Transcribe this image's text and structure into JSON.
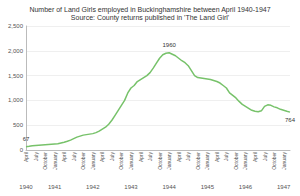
{
  "chart_data": {
    "type": "line",
    "title": "Number of Land Girls employed in Buckinghamshire between April 1940-1947",
    "subtitle": "Source: County returns published in 'The Land Girl'",
    "categories": [
      "April",
      null,
      null,
      "July",
      null,
      null,
      "October",
      null,
      null,
      "January",
      null,
      null,
      "April",
      null,
      null,
      "July",
      null,
      null,
      "October",
      null,
      null,
      "January",
      null,
      null,
      "April",
      null,
      null,
      "July",
      null,
      null,
      "October",
      null,
      null,
      "January",
      null,
      null,
      "April",
      null,
      null,
      "July",
      null,
      null,
      "October",
      null,
      null,
      "January",
      null,
      null,
      "April",
      null,
      null,
      "July",
      null,
      null,
      "October",
      null,
      null,
      "January",
      null,
      null,
      "April",
      null,
      null,
      "July",
      null,
      null,
      "October",
      null,
      null,
      "January",
      null,
      null,
      "April",
      null,
      null,
      "July",
      null,
      null,
      "October",
      null,
      null,
      "January",
      null,
      null
    ],
    "years": [
      "1940",
      null,
      null,
      null,
      null,
      null,
      null,
      null,
      null,
      "1941",
      null,
      null,
      null,
      null,
      null,
      null,
      null,
      null,
      null,
      null,
      null,
      "1942",
      null,
      null,
      null,
      null,
      null,
      null,
      null,
      null,
      null,
      null,
      null,
      "1943",
      null,
      null,
      null,
      null,
      null,
      null,
      null,
      null,
      null,
      null,
      null,
      "1944",
      null,
      null,
      null,
      null,
      null,
      null,
      null,
      null,
      null,
      null,
      null,
      "1945",
      null,
      null,
      null,
      null,
      null,
      null,
      null,
      null,
      null,
      null,
      null,
      "1946",
      null,
      null,
      null,
      null,
      null,
      null,
      null,
      null,
      null,
      null,
      null,
      "1947",
      null,
      null
    ],
    "values": [
      67,
      75,
      85,
      90,
      95,
      100,
      105,
      110,
      115,
      120,
      125,
      140,
      155,
      175,
      200,
      230,
      260,
      280,
      300,
      310,
      320,
      330,
      350,
      380,
      420,
      460,
      520,
      600,
      700,
      800,
      900,
      1000,
      1150,
      1250,
      1300,
      1380,
      1420,
      1460,
      1500,
      1560,
      1650,
      1750,
      1850,
      1920,
      1950,
      1960,
      1930,
      1900,
      1850,
      1800,
      1760,
      1700,
      1600,
      1500,
      1460,
      1450,
      1440,
      1430,
      1420,
      1400,
      1380,
      1350,
      1300,
      1250,
      1150,
      1100,
      1050,
      980,
      920,
      880,
      840,
      800,
      780,
      770,
      790,
      880,
      910,
      900,
      870,
      850,
      820,
      800,
      780,
      764
    ],
    "value_labels": [
      "67",
      null,
      null,
      null,
      null,
      null,
      null,
      null,
      null,
      null,
      null,
      null,
      null,
      null,
      null,
      null,
      null,
      null,
      null,
      null,
      null,
      null,
      null,
      null,
      null,
      null,
      null,
      null,
      null,
      null,
      null,
      null,
      null,
      null,
      null,
      null,
      null,
      null,
      null,
      null,
      null,
      null,
      null,
      null,
      null,
      "1960",
      null,
      null,
      null,
      null,
      null,
      null,
      null,
      null,
      null,
      null,
      null,
      null,
      null,
      null,
      null,
      null,
      null,
      null,
      null,
      null,
      null,
      null,
      null,
      null,
      null,
      null,
      null,
      null,
      null,
      null,
      null,
      null,
      null,
      null,
      null,
      null,
      null,
      "764"
    ],
    "color": "#77c26a",
    "ylim": [
      0,
      2500
    ],
    "yticks": [
      0,
      500,
      1000,
      1500,
      2000,
      2500
    ],
    "grid": true
  }
}
